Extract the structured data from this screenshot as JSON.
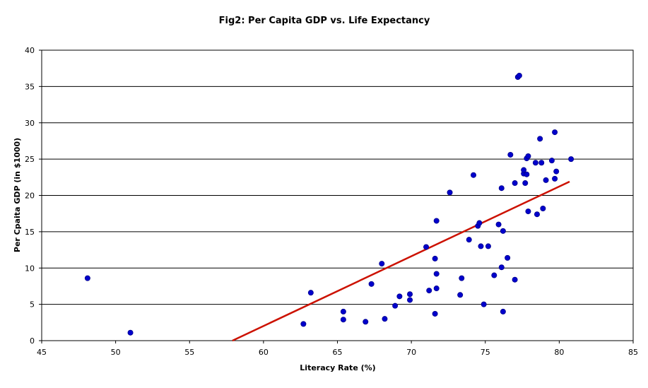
{
  "chart_data": {
    "type": "scatter",
    "title": "Fig2: Per Capita GDP vs. Life Expectancy",
    "xlabel": "Literacy Rate (%)",
    "ylabel": "Per Cpaita GDP (in $1000)",
    "xlim": [
      45,
      85
    ],
    "ylim": [
      0,
      40
    ],
    "xticks": [
      "45",
      "50",
      "55",
      "60",
      "65",
      "70",
      "75",
      "80",
      "85"
    ],
    "yticks": [
      "0",
      "5",
      "10",
      "15",
      "20",
      "25",
      "30",
      "35",
      "40"
    ],
    "grid": "horizontal",
    "legend": "none",
    "colors": {
      "points": "#0000cc",
      "trendline": "#cc1100",
      "axis": "#000000"
    },
    "series": [
      {
        "values": [
          [
            48.1,
            8.6
          ],
          [
            51.0,
            1.1
          ],
          [
            62.7,
            2.3
          ],
          [
            63.2,
            6.6
          ],
          [
            65.4,
            4.0
          ],
          [
            65.4,
            2.9
          ],
          [
            66.9,
            2.6
          ],
          [
            67.3,
            7.8
          ],
          [
            68.0,
            10.6
          ],
          [
            68.2,
            3.0
          ],
          [
            68.9,
            4.8
          ],
          [
            69.2,
            6.1
          ],
          [
            69.9,
            6.4
          ],
          [
            69.9,
            5.6
          ],
          [
            71.0,
            12.9
          ],
          [
            71.2,
            6.9
          ],
          [
            71.6,
            3.7
          ],
          [
            71.6,
            11.3
          ],
          [
            71.7,
            7.2
          ],
          [
            71.7,
            9.2
          ],
          [
            71.7,
            16.5
          ],
          [
            72.6,
            20.4
          ],
          [
            73.3,
            6.3
          ],
          [
            73.4,
            8.6
          ],
          [
            73.9,
            13.9
          ],
          [
            74.2,
            22.8
          ],
          [
            74.5,
            15.8
          ],
          [
            74.6,
            16.2
          ],
          [
            74.7,
            13.0
          ],
          [
            74.9,
            5.0
          ],
          [
            75.2,
            13.0
          ],
          [
            75.6,
            9.0
          ],
          [
            75.9,
            16.0
          ],
          [
            76.1,
            21.0
          ],
          [
            76.1,
            10.1
          ],
          [
            76.2,
            4.0
          ],
          [
            76.2,
            15.1
          ],
          [
            76.5,
            11.4
          ],
          [
            76.7,
            25.6
          ],
          [
            77.0,
            8.4
          ],
          [
            77.0,
            21.7
          ],
          [
            77.2,
            36.3
          ],
          [
            77.3,
            36.5
          ],
          [
            77.6,
            23.0
          ],
          [
            77.6,
            23.5
          ],
          [
            77.7,
            21.7
          ],
          [
            77.8,
            22.9
          ],
          [
            77.8,
            25.1
          ],
          [
            77.9,
            25.4
          ],
          [
            77.9,
            17.8
          ],
          [
            78.4,
            24.5
          ],
          [
            78.5,
            17.4
          ],
          [
            78.7,
            27.8
          ],
          [
            78.8,
            24.5
          ],
          [
            78.9,
            18.2
          ],
          [
            79.1,
            22.1
          ],
          [
            79.5,
            24.8
          ],
          [
            79.7,
            22.3
          ],
          [
            79.7,
            28.7
          ],
          [
            79.8,
            23.3
          ],
          [
            80.8,
            25.0
          ]
        ]
      }
    ],
    "trendline": {
      "type": "linear",
      "x": [
        57.9,
        80.7
      ],
      "y": [
        0,
        21.9
      ]
    }
  }
}
